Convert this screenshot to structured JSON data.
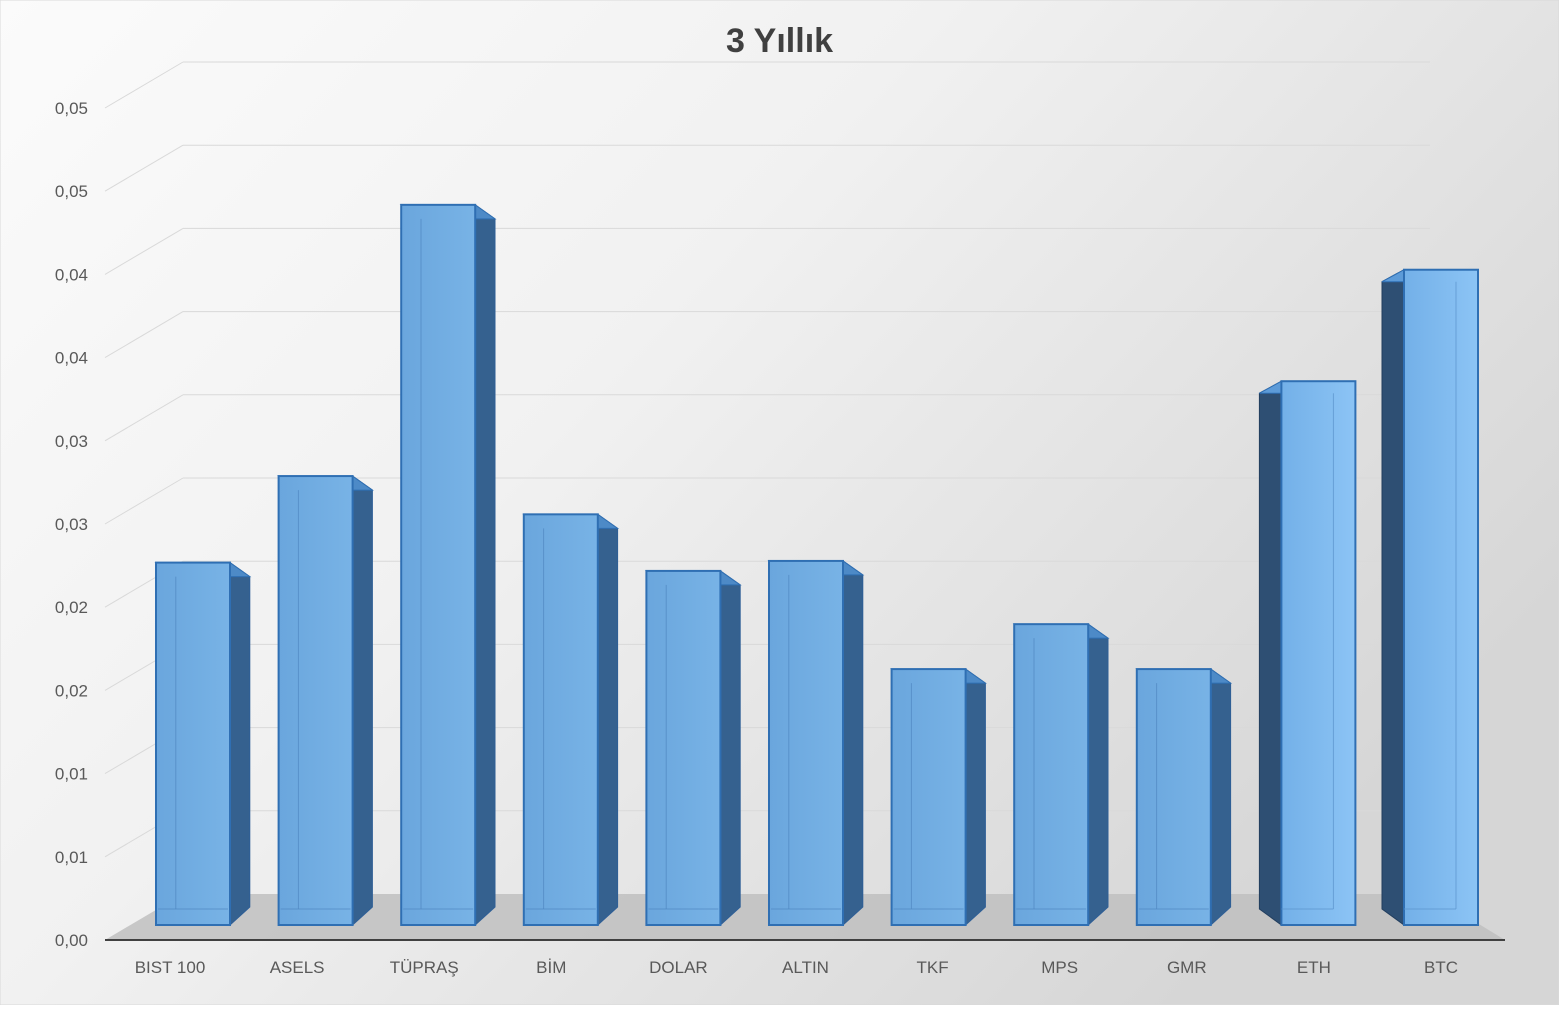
{
  "chart_data": {
    "type": "bar",
    "title": "3 Yıllık",
    "xlabel": "",
    "ylabel": "",
    "categories": [
      "BIST 100",
      "ASELS",
      "TÜPRAŞ",
      "BİM",
      "DOLAR",
      "ALTIN",
      "TKF",
      "MPS",
      "GMR",
      "ETH",
      "BTC"
    ],
    "values": [
      0.0222,
      0.0274,
      0.0437,
      0.0251,
      0.0217,
      0.0223,
      0.0158,
      0.0185,
      0.0158,
      0.0331,
      0.0398
    ],
    "yticks": [
      "0,00",
      "0,01",
      "0,01",
      "0,02",
      "0,02",
      "0,03",
      "0,03",
      "0,04",
      "0,04",
      "0,05",
      "0,05"
    ],
    "ylim": [
      0,
      0.05
    ],
    "grid": true,
    "legend": "none",
    "colors": {
      "bar_front": "#6fa8dc",
      "bar_side": "#35618f",
      "bar_top": "#4d8ac7",
      "gridline": "#d9d9d9",
      "floor": "#bfbfbf",
      "axis": "#404040",
      "text": "#595959",
      "title": "#404040"
    }
  }
}
